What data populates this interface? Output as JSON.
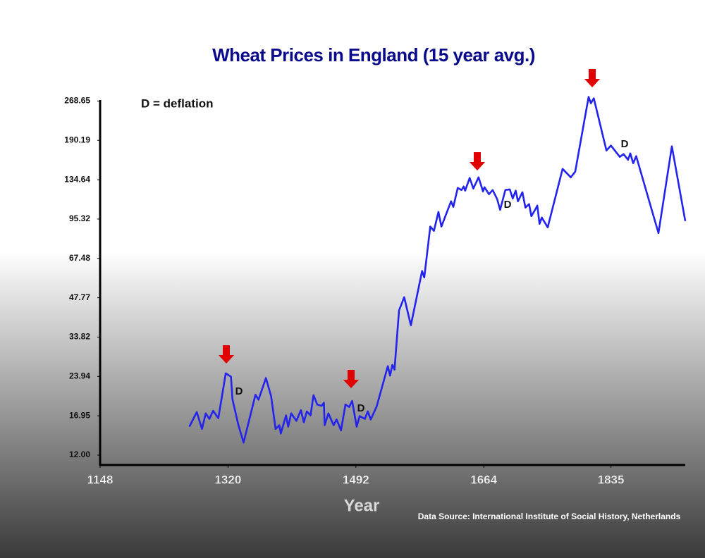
{
  "chart_data": {
    "type": "line",
    "title": "Wheat Prices in England (15 year avg.)",
    "x_label": "Year",
    "source": "Data Source: International Institute of Social History, Netherlands",
    "annotations": [
      "D = deflation",
      "D",
      "D",
      "D",
      "D"
    ],
    "color": "#2323ee",
    "yscale": "log",
    "grid": false,
    "xlim": [
      1148,
      1935
    ],
    "xticks": [
      1148,
      1320,
      1492,
      1664,
      1835
    ],
    "ylim": [
      11,
      271
    ],
    "yticks": [
      {
        "value": 12,
        "label": "12.00"
      },
      16.95,
      23.94,
      33.82,
      47.77,
      67.48,
      95.32,
      134.64,
      190.19,
      268.65
    ],
    "x": [
      1268,
      1278,
      1285,
      1290,
      1295,
      1300,
      1307,
      1317,
      1324,
      1326,
      1334,
      1341,
      1357,
      1361,
      1371,
      1378,
      1384,
      1389,
      1391,
      1398,
      1401,
      1405,
      1412,
      1418,
      1422,
      1426,
      1431,
      1435,
      1440,
      1446,
      1449,
      1450,
      1455,
      1462,
      1466,
      1472,
      1478,
      1483,
      1487,
      1493,
      1497,
      1504,
      1508,
      1512,
      1520,
      1535,
      1538,
      1541,
      1544,
      1550,
      1557,
      1566,
      1581,
      1584,
      1592,
      1597,
      1603,
      1607,
      1620,
      1623,
      1629,
      1634,
      1637,
      1639,
      1645,
      1650,
      1657,
      1663,
      1665,
      1671,
      1676,
      1682,
      1686,
      1693,
      1699,
      1703,
      1707,
      1710,
      1716,
      1720,
      1725,
      1728,
      1733,
      1736,
      1739,
      1742,
      1750,
      1770,
      1781,
      1787,
      1805,
      1808,
      1812,
      1829,
      1835,
      1847,
      1852,
      1858,
      1861,
      1865,
      1869,
      1899,
      1917,
      1935
    ],
    "values": [
      15.4,
      17.5,
      15.1,
      17.3,
      16.5,
      17.7,
      16.6,
      24.6,
      23.9,
      19.6,
      15.6,
      13.4,
      20.4,
      19.5,
      23.6,
      20.1,
      15.1,
      15.6,
      14.5,
      17.0,
      15.4,
      17.3,
      16.2,
      17.8,
      16.0,
      17.6,
      17.0,
      20.3,
      18.7,
      18.5,
      19.0,
      15.6,
      17.3,
      15.6,
      16.4,
      14.9,
      18.7,
      18.3,
      19.3,
      15.4,
      16.9,
      16.5,
      17.6,
      16.4,
      18.4,
      26.2,
      24.1,
      26.5,
      25.4,
      42.7,
      48.0,
      37.5,
      60.4,
      57.1,
      89.2,
      85.9,
      101.5,
      89.2,
      111.4,
      106.0,
      125.3,
      123.0,
      126.8,
      122.3,
      136.7,
      124.6,
      137.5,
      121.5,
      126.1,
      118.5,
      123.0,
      113.5,
      103.4,
      123.0,
      123.7,
      114.2,
      122.3,
      111.4,
      120.7,
      105.4,
      108.7,
      97.8,
      103.4,
      107.3,
      91.4,
      96.6,
      88.6,
      148.1,
      137.5,
      144.5,
      278.5,
      263.4,
      275.0,
      174.0,
      181.7,
      164.5,
      168.6,
      160.5,
      169.7,
      155.6,
      165.6,
      84.3,
      180.5,
      93.7
    ]
  }
}
